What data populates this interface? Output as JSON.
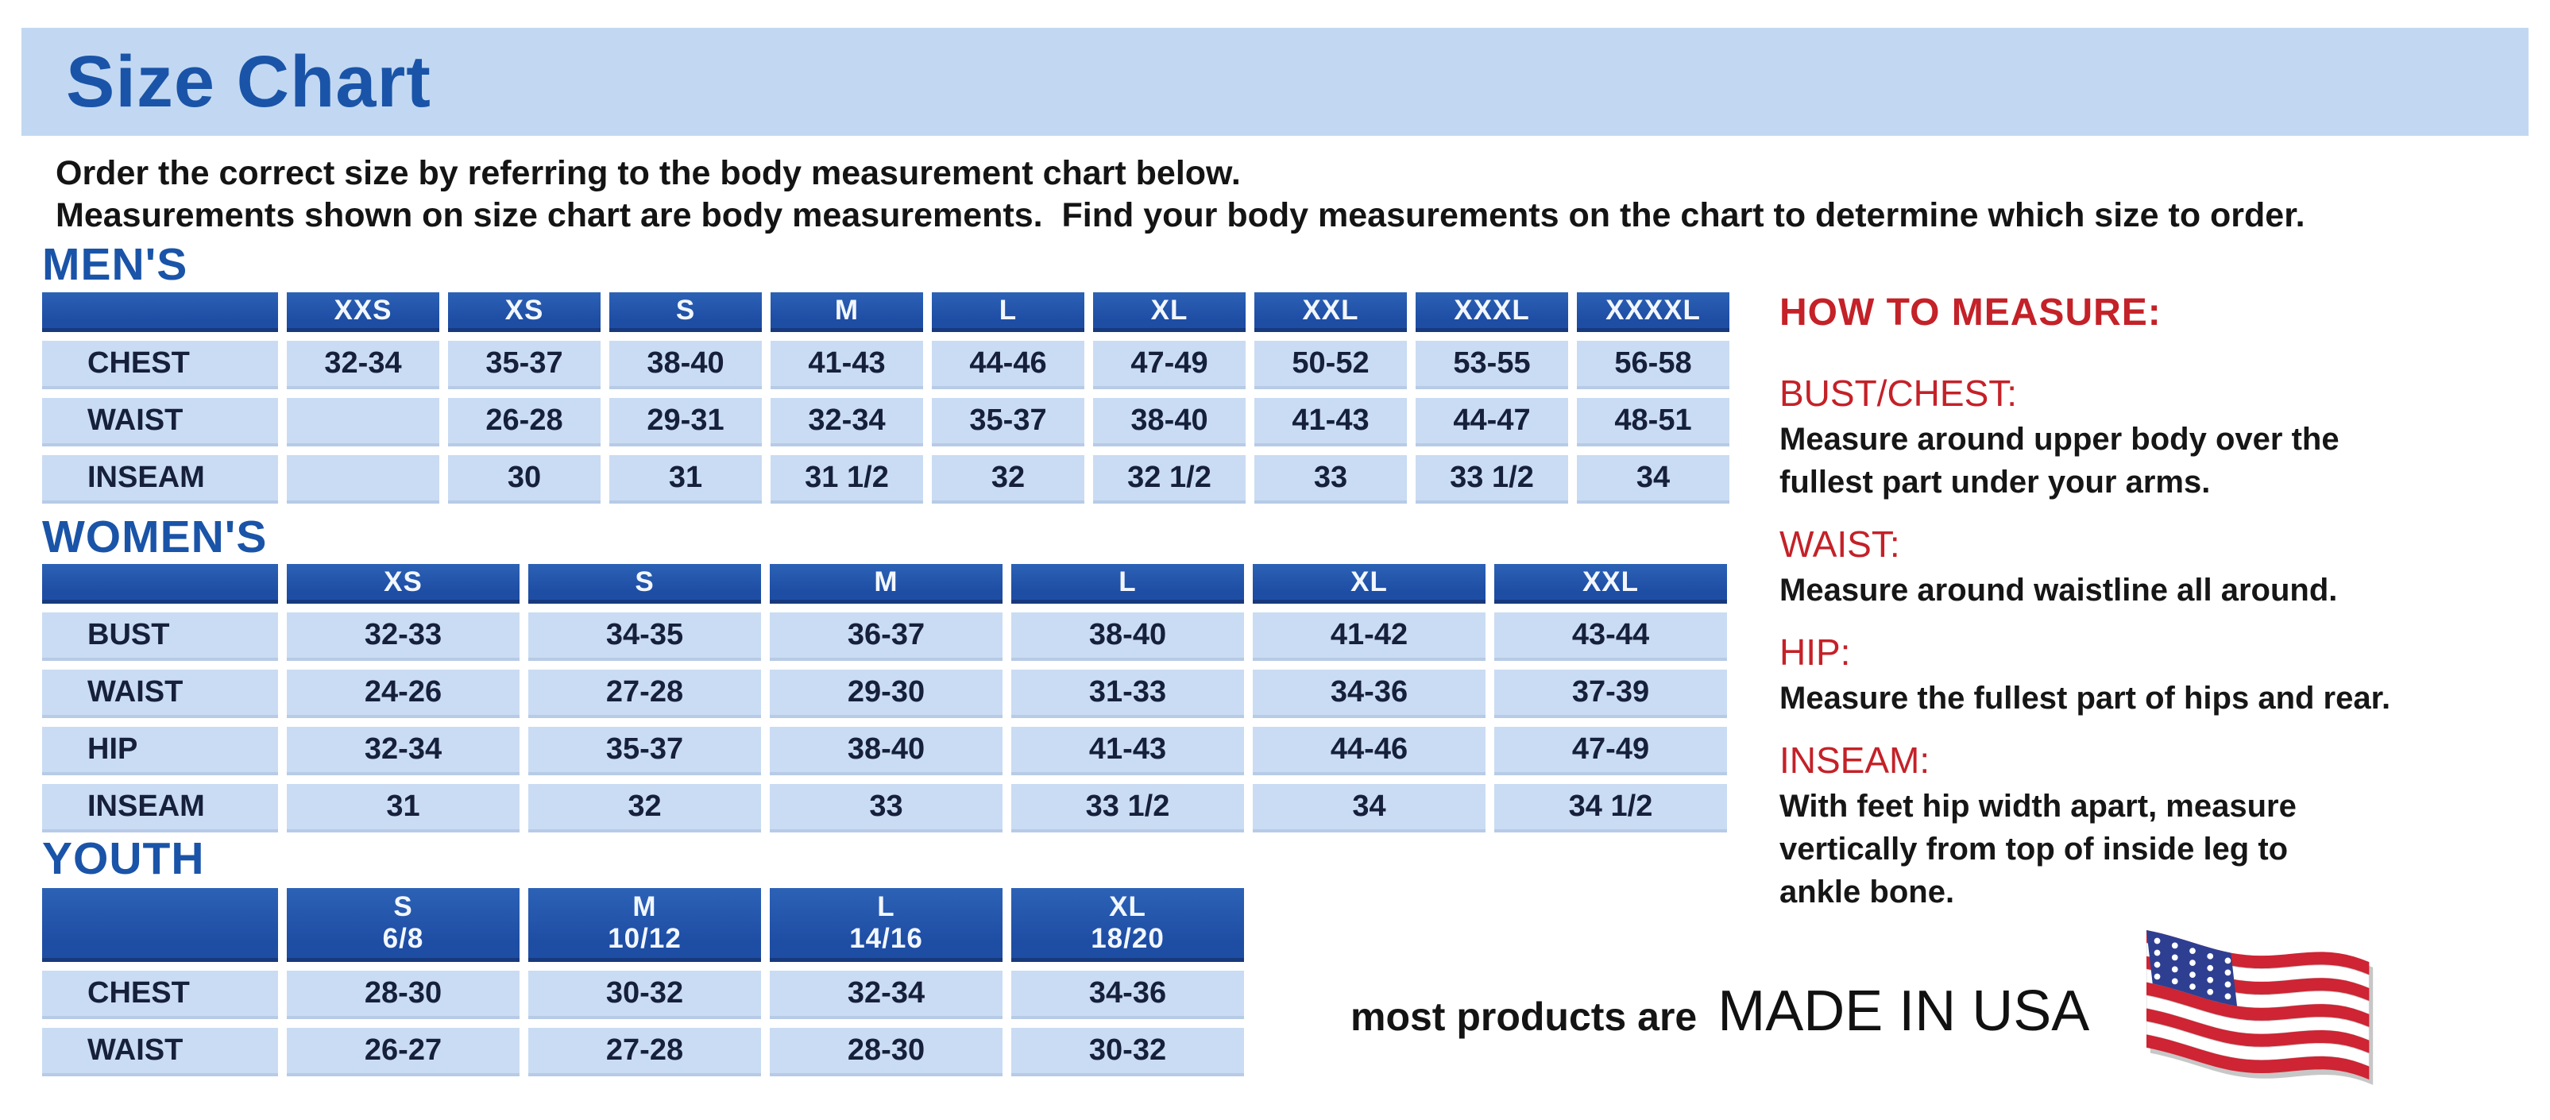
{
  "title": "Size Chart",
  "intro": {
    "line1": "Order the correct size by referring to the body measurement chart below.",
    "line2": "Measurements shown on size chart are body measurements.  Find your body measurements on the chart to determine which size to order."
  },
  "tables": {
    "mens": {
      "heading": "MEN'S",
      "columns": [
        "XXS",
        "XS",
        "S",
        "M",
        "L",
        "XL",
        "XXL",
        "XXXL",
        "XXXXL"
      ],
      "rows": [
        {
          "label": "CHEST",
          "values": [
            "32-34",
            "35-37",
            "38-40",
            "41-43",
            "44-46",
            "47-49",
            "50-52",
            "53-55",
            "56-58"
          ]
        },
        {
          "label": "WAIST",
          "values": [
            "",
            "26-28",
            "29-31",
            "32-34",
            "35-37",
            "38-40",
            "41-43",
            "44-47",
            "48-51"
          ]
        },
        {
          "label": "INSEAM",
          "values": [
            "",
            "30",
            "31",
            "31 1/2",
            "32",
            "32 1/2",
            "33",
            "33 1/2",
            "34"
          ]
        }
      ]
    },
    "womens": {
      "heading": "WOMEN'S",
      "columns": [
        "XS",
        "S",
        "M",
        "L",
        "XL",
        "XXL"
      ],
      "rows": [
        {
          "label": "BUST",
          "values": [
            "32-33",
            "34-35",
            "36-37",
            "38-40",
            "41-42",
            "43-44"
          ]
        },
        {
          "label": "WAIST",
          "values": [
            "24-26",
            "27-28",
            "29-30",
            "31-33",
            "34-36",
            "37-39"
          ]
        },
        {
          "label": "HIP",
          "values": [
            "32-34",
            "35-37",
            "38-40",
            "41-43",
            "44-46",
            "47-49"
          ]
        },
        {
          "label": "INSEAM",
          "values": [
            "31",
            "32",
            "33",
            "33 1/2",
            "34",
            "34 1/2"
          ]
        }
      ]
    },
    "youth": {
      "heading": "YOUTH",
      "columns": [
        "S\n6/8",
        "M\n10/12",
        "L\n14/16",
        "XL\n18/20"
      ],
      "rows": [
        {
          "label": "CHEST",
          "values": [
            "28-30",
            "30-32",
            "32-34",
            "34-36"
          ]
        },
        {
          "label": "WAIST",
          "values": [
            "26-27",
            "27-28",
            "28-30",
            "30-32"
          ]
        }
      ]
    }
  },
  "how_to_measure": {
    "heading": "HOW TO MEASURE:",
    "items": [
      {
        "label": "BUST/CHEST:",
        "text": "Measure around upper body over the\nfullest part under your arms."
      },
      {
        "label": "WAIST:",
        "text": "Measure around waistline all around."
      },
      {
        "label": "HIP:",
        "text": "Measure the fullest part of hips and rear."
      },
      {
        "label": "INSEAM:",
        "text": "With feet hip width apart, measure\nvertically from top of inside leg to\nankle bone."
      }
    ]
  },
  "footer": {
    "prefix": "most products are",
    "made_in": "MADE IN USA",
    "flag_icon": "us-flag-icon"
  },
  "colors": {
    "header_blue": "#1e4da4",
    "cell_blue": "#cadcf3",
    "titlebar_blue": "#c2d8f2",
    "heading_blue": "#1a54a8",
    "red": "#c42128",
    "cell_text": "#16203a",
    "flag_red": "#ce2433",
    "flag_blue": "#2e3f92",
    "flag_white": "#ffffff"
  }
}
